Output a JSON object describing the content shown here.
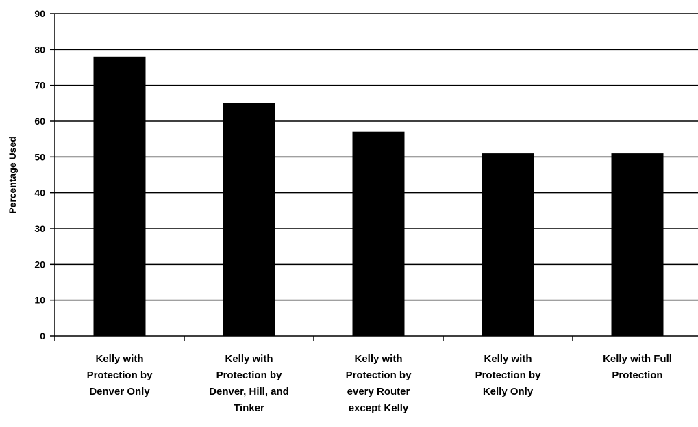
{
  "chart_data": {
    "type": "bar",
    "title": "",
    "xlabel": "",
    "ylabel": "Percentage Used",
    "ylim": [
      0,
      90
    ],
    "yticks": [
      0,
      10,
      20,
      30,
      40,
      50,
      60,
      70,
      80,
      90
    ],
    "grid": true,
    "legend": "none",
    "bar_color": "#000000",
    "categories": [
      [
        "Kelly with",
        "Protection by",
        "Denver Only"
      ],
      [
        "Kelly with",
        "Protection by",
        "Denver, Hill, and",
        "Tinker"
      ],
      [
        "Kelly with",
        "Protection by",
        "every Router",
        "except Kelly"
      ],
      [
        "Kelly with",
        "Protection by",
        "Kelly Only"
      ],
      [
        "Kelly with Full",
        "Protection"
      ]
    ],
    "values": [
      78,
      65,
      57,
      51,
      51
    ]
  }
}
